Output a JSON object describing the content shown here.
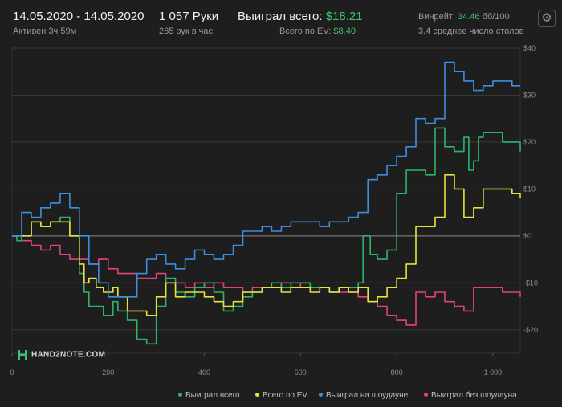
{
  "header": {
    "date_range": "14.05.2020 - 14.05.2020",
    "active": "Активен 3ч 59м",
    "hands": "1 057 Руки",
    "hands_per_hour": "265 рук в час",
    "won_label": "Выиграл всего:",
    "won_value": "$18.21",
    "ev_label": "Всего по EV:",
    "ev_value": "$8.40",
    "winrate_label": "Винрейт:",
    "winrate_value": "34.46",
    "winrate_unit": "бб/100",
    "tables": "3.4 среднее число столов"
  },
  "logo_text": "HAND2NOTE.COM",
  "colors": {
    "background": "#1e1e1e",
    "accent_green": "#39c46d"
  },
  "chart_data": {
    "type": "line",
    "title": "",
    "xlabel": "",
    "ylabel": "",
    "xlim": [
      0,
      1057
    ],
    "ylim": [
      -25,
      40
    ],
    "grid": true,
    "y_axis_side": "right",
    "x_ticks": [
      0,
      200,
      400,
      600,
      800,
      1000
    ],
    "x_tick_labels": [
      "0",
      "200",
      "400",
      "600",
      "800",
      "1 000"
    ],
    "y_ticks": [
      40,
      30,
      20,
      10,
      0,
      -10,
      -20
    ],
    "y_tick_labels": [
      "$40",
      "$30",
      "$20",
      "$10",
      "$0",
      "-$10",
      "-$20"
    ],
    "legend_position": "bottom-right",
    "series": [
      {
        "name": "Выиграл всего",
        "color": "#2fb36b",
        "x": [
          0,
          10,
          20,
          40,
          60,
          80,
          100,
          120,
          140,
          150,
          160,
          175,
          190,
          210,
          220,
          240,
          260,
          280,
          300,
          320,
          340,
          360,
          380,
          400,
          420,
          440,
          460,
          480,
          500,
          520,
          540,
          560,
          580,
          600,
          620,
          640,
          660,
          680,
          700,
          720,
          730,
          745,
          760,
          780,
          800,
          820,
          840,
          860,
          880,
          900,
          920,
          940,
          950,
          960,
          970,
          980,
          1000,
          1020,
          1040,
          1057
        ],
        "y": [
          0,
          -1,
          0,
          3,
          2,
          3,
          4,
          0,
          -8,
          -12,
          -15,
          -15,
          -17,
          -14,
          -16,
          -18,
          -22,
          -23,
          -15,
          -9,
          -12,
          -13,
          -11,
          -10,
          -12,
          -16,
          -15,
          -13,
          -12,
          -11,
          -10,
          -11,
          -10,
          -10,
          -11,
          -11,
          -12,
          -11,
          -11,
          -10,
          0,
          -4,
          -5,
          -3,
          9,
          14,
          14,
          13,
          23,
          19,
          18,
          21,
          14,
          16,
          21,
          22,
          22,
          20,
          20,
          18
        ]
      },
      {
        "name": "Всего по EV",
        "color": "#e8e23a",
        "x": [
          0,
          20,
          40,
          60,
          80,
          100,
          120,
          140,
          150,
          160,
          175,
          190,
          210,
          220,
          240,
          260,
          280,
          300,
          320,
          340,
          360,
          380,
          400,
          420,
          440,
          460,
          480,
          500,
          520,
          540,
          560,
          580,
          600,
          620,
          640,
          660,
          680,
          700,
          720,
          740,
          760,
          780,
          800,
          820,
          840,
          860,
          880,
          900,
          920,
          940,
          960,
          980,
          1000,
          1020,
          1040,
          1057
        ],
        "y": [
          0,
          0,
          3,
          2,
          3,
          3,
          0,
          -6,
          -10,
          -9,
          -11,
          -12,
          -11,
          -13,
          -16,
          -16,
          -17,
          -13,
          -10,
          -13,
          -12,
          -12,
          -13,
          -14,
          -15,
          -14,
          -12,
          -12,
          -11,
          -11,
          -12,
          -11,
          -11,
          -12,
          -11,
          -12,
          -11,
          -12,
          -11,
          -14,
          -13,
          -11,
          -9,
          -6,
          2,
          2,
          4,
          13,
          10,
          4,
          6,
          10,
          10,
          10,
          9,
          8
        ]
      },
      {
        "name": "Выиграл на шоудауне",
        "color": "#3d8ee0",
        "x": [
          0,
          20,
          40,
          60,
          80,
          100,
          120,
          140,
          160,
          180,
          200,
          220,
          240,
          260,
          280,
          300,
          320,
          340,
          360,
          380,
          400,
          420,
          440,
          460,
          480,
          500,
          520,
          540,
          560,
          580,
          600,
          620,
          640,
          660,
          680,
          700,
          720,
          730,
          740,
          760,
          780,
          800,
          820,
          840,
          860,
          880,
          900,
          910,
          920,
          940,
          960,
          980,
          1000,
          1020,
          1040,
          1057
        ],
        "y": [
          0,
          5,
          4,
          6,
          7,
          9,
          6,
          0,
          -6,
          -10,
          -13,
          -13,
          -13,
          -8,
          -5,
          -4,
          -6,
          -7,
          -5,
          -3,
          -4,
          -5,
          -4,
          -2,
          1,
          1,
          2,
          1,
          2,
          3,
          3,
          3,
          2,
          3,
          3,
          4,
          5,
          5,
          12,
          13,
          15,
          17,
          19,
          25,
          24,
          25,
          37,
          37,
          35,
          33,
          31,
          32,
          33,
          33,
          32,
          32
        ]
      },
      {
        "name": "Выиграл без шоудауна",
        "color": "#e0447a",
        "x": [
          0,
          20,
          40,
          60,
          80,
          100,
          120,
          140,
          160,
          180,
          200,
          220,
          240,
          260,
          280,
          300,
          320,
          340,
          360,
          380,
          400,
          420,
          440,
          460,
          480,
          500,
          520,
          540,
          560,
          580,
          600,
          620,
          640,
          660,
          680,
          700,
          720,
          740,
          760,
          780,
          800,
          820,
          840,
          860,
          880,
          900,
          920,
          940,
          960,
          980,
          1000,
          1020,
          1040,
          1057
        ],
        "y": [
          0,
          -1,
          -2,
          -3,
          -2,
          -4,
          -5,
          -5,
          -6,
          -5,
          -7,
          -8,
          -8,
          -9,
          -9,
          -8,
          -10,
          -10,
          -11,
          -10,
          -11,
          -10,
          -11,
          -11,
          -12,
          -11,
          -11,
          -11,
          -10,
          -11,
          -10,
          -11,
          -11,
          -12,
          -12,
          -12,
          -13,
          -14,
          -15,
          -17,
          -18,
          -19,
          -12,
          -13,
          -12,
          -14,
          -15,
          -16,
          -11,
          -11,
          -11,
          -12,
          -12,
          -13
        ]
      }
    ]
  }
}
